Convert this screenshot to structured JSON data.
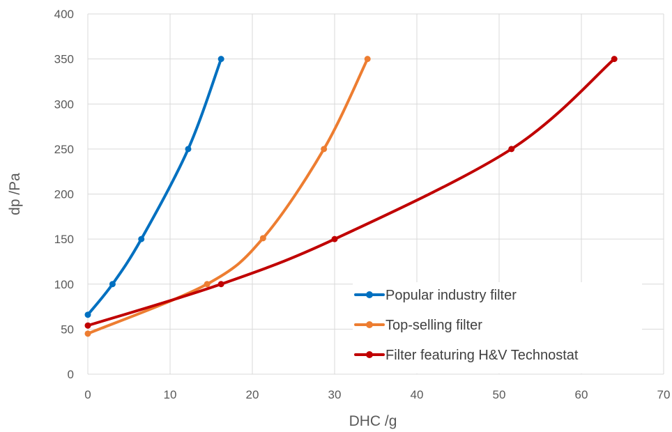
{
  "chart_data": {
    "type": "line",
    "xlabel": "DHC /g",
    "ylabel": "dp /Pa",
    "xlim": [
      0,
      70
    ],
    "ylim": [
      0,
      400
    ],
    "xticks": [
      0,
      10,
      20,
      30,
      40,
      50,
      60,
      70
    ],
    "yticks": [
      0,
      50,
      100,
      150,
      200,
      250,
      300,
      350,
      400
    ],
    "grid": true,
    "legend": "bottom-right",
    "series": [
      {
        "name": "Popular industry filter",
        "color": "#0070c0",
        "x": [
          0,
          3,
          6.5,
          12.2,
          16.2
        ],
        "y": [
          66,
          100,
          150,
          250,
          350
        ]
      },
      {
        "name": "Top-selling filter",
        "color": "#ed7d31",
        "x": [
          0,
          14.5,
          21.3,
          28.7,
          34
        ],
        "y": [
          45,
          100,
          151,
          250,
          350
        ]
      },
      {
        "name": "Filter featuring H&V Technostat",
        "color": "#c00000",
        "x": [
          0,
          16.2,
          30,
          51.5,
          64
        ],
        "y": [
          54,
          100,
          150,
          250,
          350
        ]
      }
    ]
  }
}
